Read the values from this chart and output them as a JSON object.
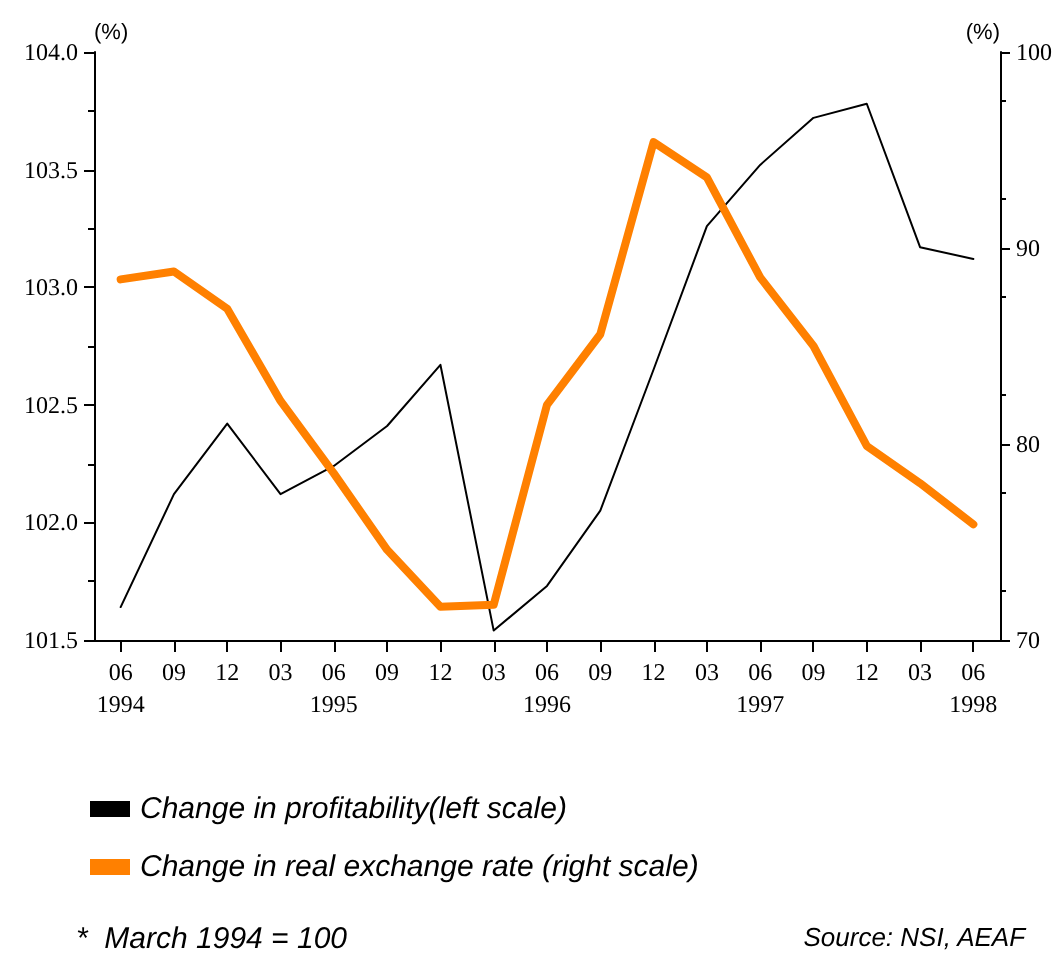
{
  "chart_data": {
    "type": "line",
    "ylabel": "(%)",
    "y2label": "(%)",
    "categories": [
      "06\n1994",
      "09",
      "12",
      "03",
      "06\n1995",
      "09",
      "12",
      "03",
      "06\n1996",
      "09",
      "12",
      "03",
      "06\n1997",
      "09",
      "12",
      "03",
      "06\n1998"
    ],
    "series": [
      {
        "name": "Change in profitability(left scale)",
        "color": "#000000",
        "values": [
          101.64,
          102.12,
          102.42,
          102.12,
          102.24,
          102.41,
          102.67,
          101.54,
          101.73,
          102.05,
          102.65,
          103.26,
          103.52,
          103.72,
          103.78,
          103.17,
          103.12
        ]
      },
      {
        "name": "Change in real exchange rate (right scale)",
        "color": "#ff8000",
        "axis": "y2",
        "values": [
          88.4,
          88.8,
          86.9,
          82.2,
          78.5,
          74.6,
          71.7,
          71.8,
          82.0,
          85.6,
          95.4,
          93.6,
          88.5,
          85.0,
          79.9,
          78.0,
          75.9
        ]
      }
    ],
    "ylim": [
      101.5,
      104.0
    ],
    "yticks": [
      {
        "value": 101.5,
        "label": "101.5"
      },
      {
        "value": 102,
        "label": "102.0"
      },
      {
        "value": 102.5,
        "label": "102.5"
      },
      {
        "value": 103,
        "label": "103.0"
      },
      {
        "value": 103.5,
        "label": "103.5"
      },
      {
        "value": 104,
        "label": "104.0"
      }
    ],
    "y2lim": [
      70,
      100
    ],
    "y2ticks": [
      70,
      80,
      90,
      100
    ],
    "legend": "bottom left",
    "grid": false,
    "marker": "none",
    "line_style": "solid",
    "annotations": [
      "*  March 1994 = 100",
      "Source: NSI, AEAF"
    ]
  }
}
